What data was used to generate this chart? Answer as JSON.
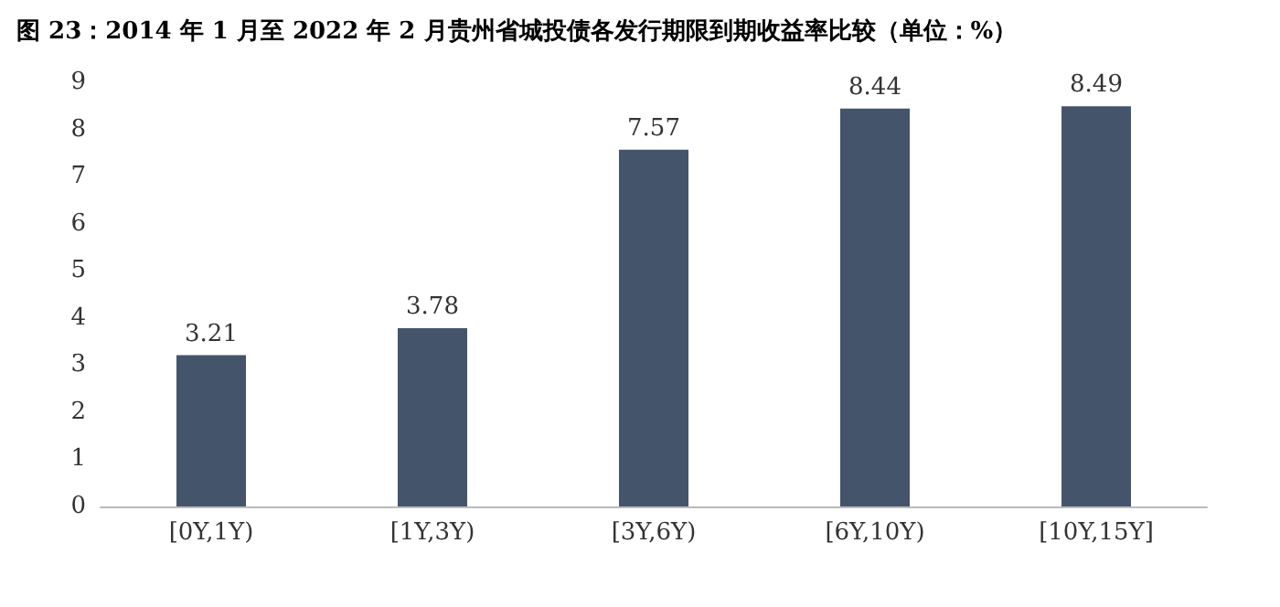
{
  "chart_data": {
    "type": "bar",
    "title": "图 23：2014 年 1 月至 2022 年 2 月贵州省城投债各发行期限到期收益率比较（单位：%）",
    "categories": [
      "[0Y,1Y)",
      "[1Y,3Y)",
      "[3Y,6Y)",
      "[6Y,10Y)",
      "[10Y,15Y]"
    ],
    "values": [
      3.21,
      3.78,
      7.57,
      8.44,
      8.49
    ],
    "color": "#44546a",
    "ylim": [
      0,
      9
    ],
    "yticks": [
      0,
      1,
      2,
      3,
      4,
      5,
      6,
      7,
      8,
      9
    ],
    "grid": false,
    "data_labels": true
  }
}
